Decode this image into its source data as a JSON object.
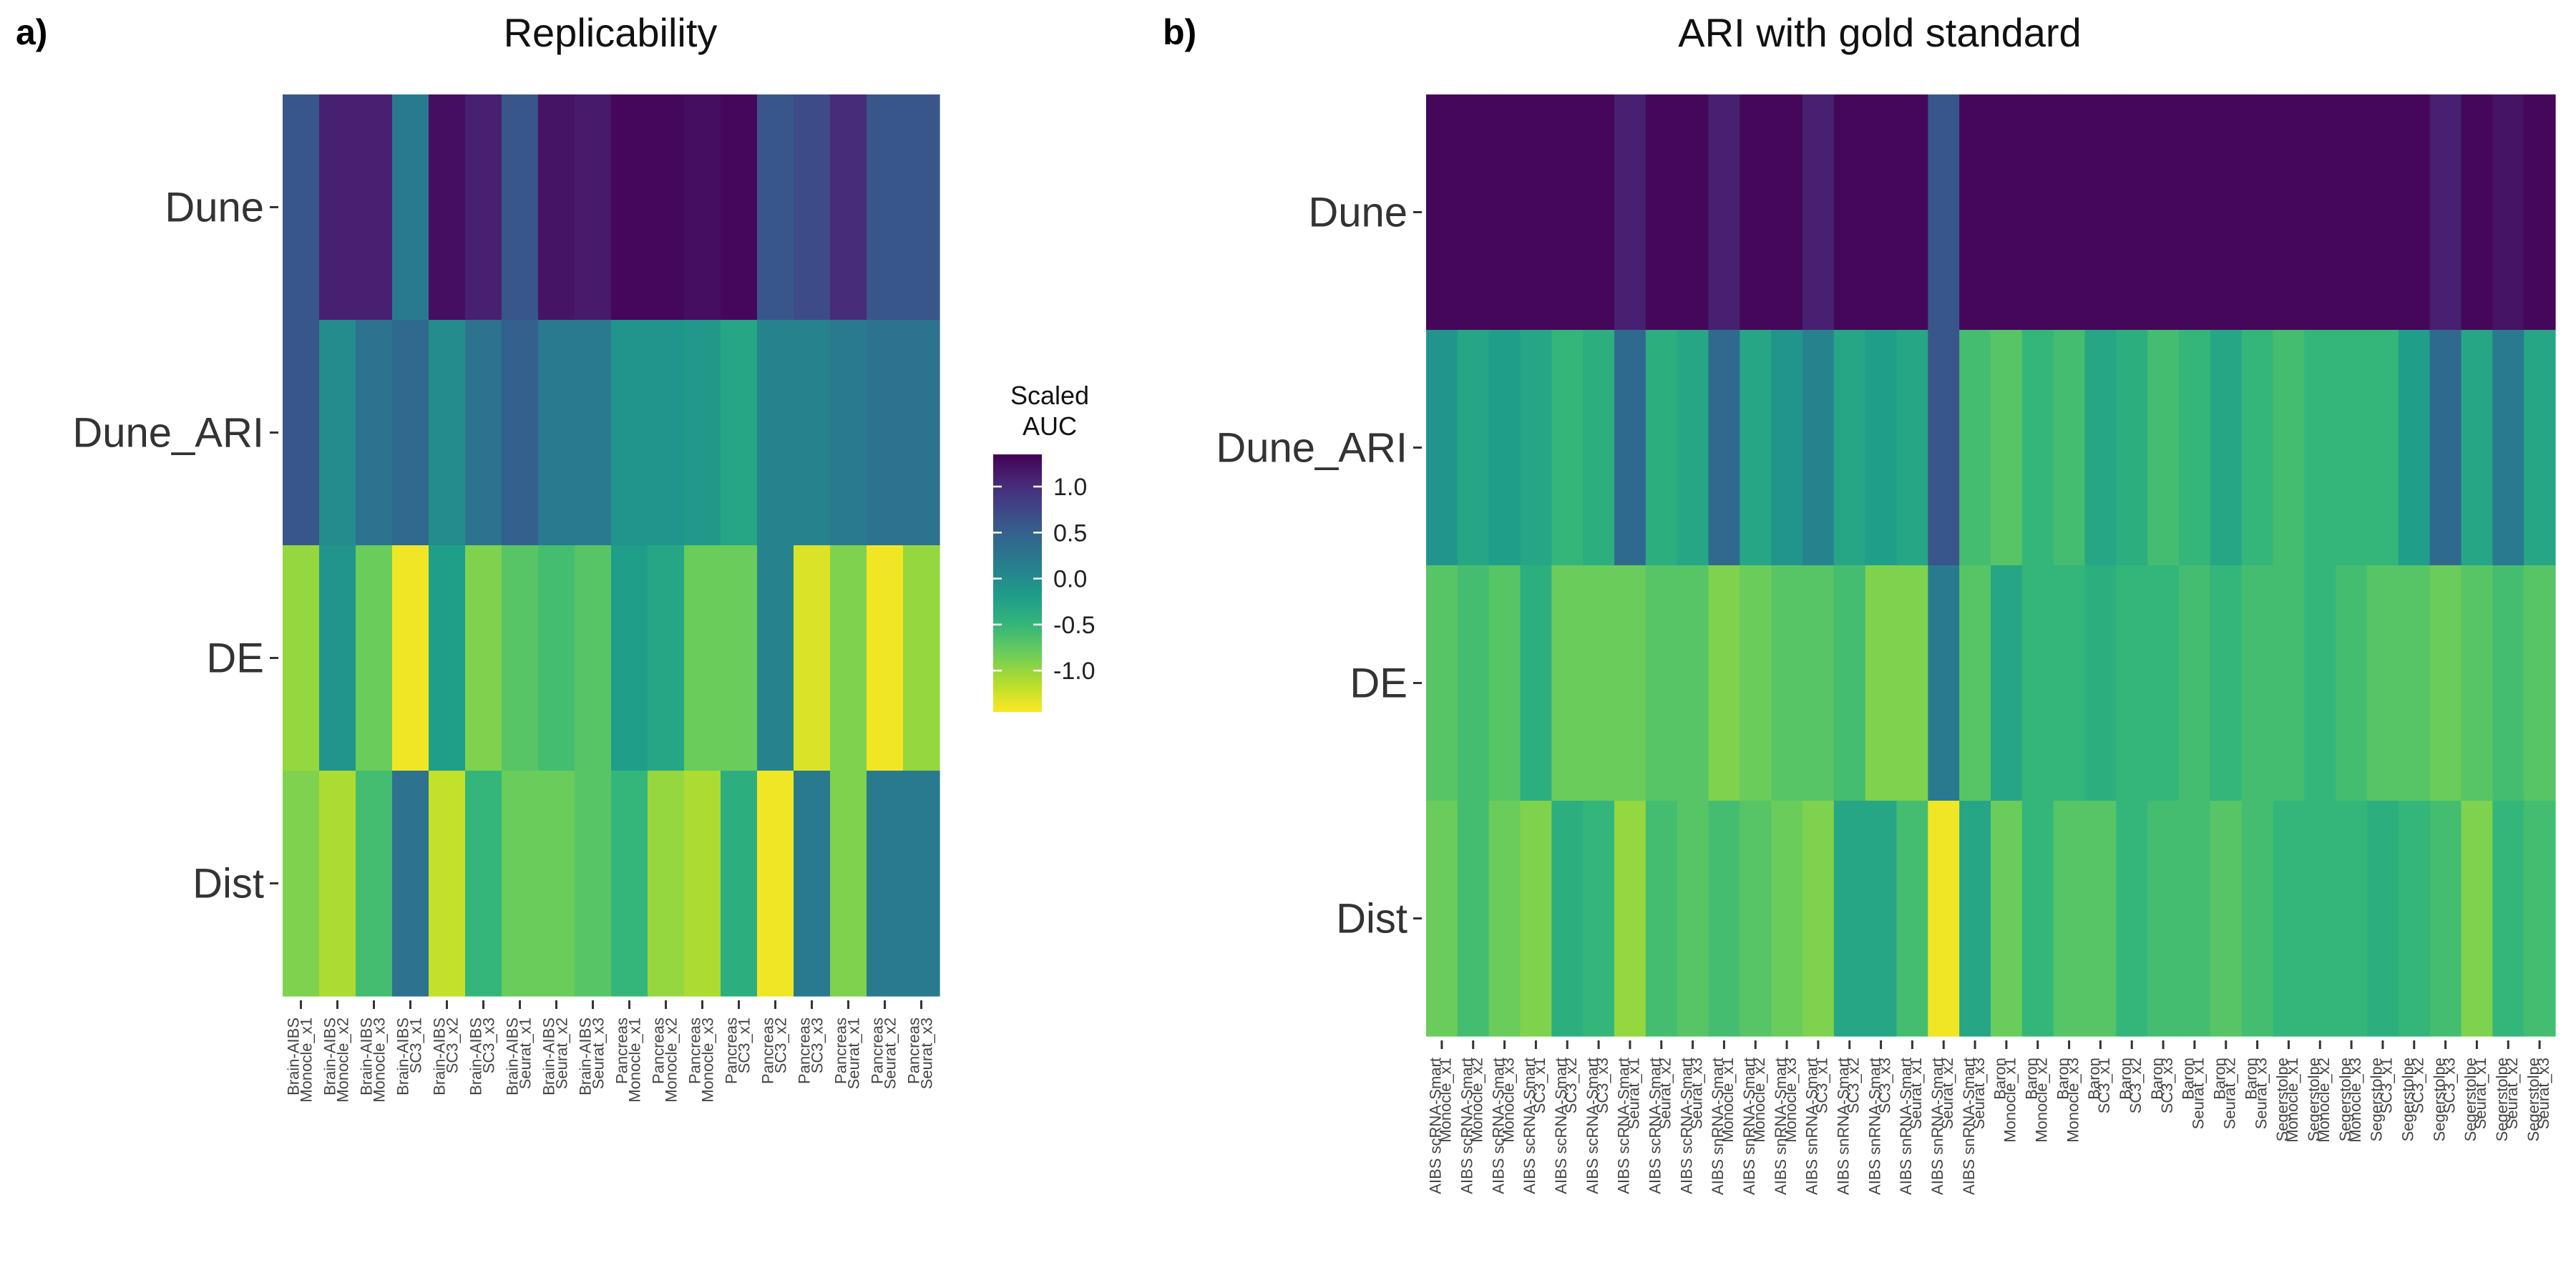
{
  "colors": {
    "colormap": "viridis (reversed: yellow = low, dark purple = high)"
  },
  "legend": {
    "title_line1": "Scaled",
    "title_line2": "AUC",
    "ticks": [
      1.0,
      0.5,
      0.0,
      -0.5,
      -1.0
    ],
    "tick_labels": [
      "1.0",
      "0.5",
      "0.0",
      "-0.5",
      "-1.0"
    ],
    "range": [
      -1.45,
      1.35
    ]
  },
  "chart_data": [
    {
      "type": "heatmap",
      "panel": "a)",
      "title": "Replicability",
      "rows": [
        "Dune",
        "Dune_ARI",
        "DE",
        "Dist"
      ],
      "columns": [
        "Brain-AIBS\nMonocle_x1",
        "Brain-AIBS\nMonocle_x2",
        "Brain-AIBS\nMonocle_x3",
        "Brain-AIBS\nSC3_x1",
        "Brain-AIBS\nSC3_x2",
        "Brain-AIBS\nSC3_x3",
        "Brain-AIBS\nSeurat_x1",
        "Brain-AIBS\nSeurat_x2",
        "Brain-AIBS\nSeurat_x3",
        "Pancreas\nMonocle_x1",
        "Pancreas\nMonocle_x2",
        "Pancreas\nMonocle_x3",
        "Pancreas\nSC3_x1",
        "Pancreas\nSC3_x2",
        "Pancreas\nSC3_x3",
        "Pancreas\nSeurat_x1",
        "Pancreas\nSeurat_x2",
        "Pancreas\nSeurat_x3"
      ],
      "values": [
        [
          0.6,
          1.1,
          1.1,
          0.2,
          1.25,
          1.1,
          0.6,
          1.2,
          1.15,
          1.3,
          1.3,
          1.25,
          1.3,
          0.6,
          0.7,
          1.0,
          0.6,
          0.6
        ],
        [
          0.6,
          0.0,
          0.3,
          0.4,
          0.0,
          0.3,
          0.5,
          0.2,
          0.2,
          -0.1,
          -0.1,
          -0.15,
          -0.3,
          0.1,
          0.1,
          0.2,
          0.3,
          0.3
        ],
        [
          -1.0,
          -0.1,
          -0.8,
          -1.4,
          -0.2,
          -0.9,
          -0.7,
          -0.6,
          -0.7,
          -0.2,
          -0.3,
          -0.8,
          -0.8,
          0.1,
          -1.3,
          -0.9,
          -1.4,
          -1.0
        ],
        [
          -0.9,
          -1.1,
          -0.6,
          0.3,
          -1.2,
          -0.5,
          -0.8,
          -0.8,
          -0.7,
          -0.5,
          -1.0,
          -1.1,
          -0.4,
          -1.4,
          0.2,
          -0.9,
          0.2,
          0.2
        ]
      ]
    },
    {
      "type": "heatmap",
      "panel": "b)",
      "title": "ARI with gold standard",
      "rows": [
        "Dune",
        "Dune_ARI",
        "DE",
        "Dist"
      ],
      "columns": [
        "AIBS scRNA-Smart\nMonocle_x1",
        "AIBS scRNA-Smart\nMonocle_x2",
        "AIBS scRNA-Smart\nMonocle_x3",
        "AIBS scRNA-Smart\nSC3_x1",
        "AIBS scRNA-Smart\nSC3_x2",
        "AIBS scRNA-Smart\nSC3_x3",
        "AIBS scRNA-Smart\nSeurat_x1",
        "AIBS scRNA-Smart\nSeurat_x2",
        "AIBS scRNA-Smart\nSeurat_x3",
        "AIBS snRNA-Smart\nMonocle_x1",
        "AIBS snRNA-Smart\nMonocle_x2",
        "AIBS snRNA-Smart\nMonocle_x3",
        "AIBS snRNA-Smart\nSC3_x1",
        "AIBS snRNA-Smart\nSC3_x2",
        "AIBS snRNA-Smart\nSC3_x3",
        "AIBS snRNA-Smart\nSeurat_x1",
        "AIBS snRNA-Smart\nSeurat_x2",
        "AIBS snRNA-Smart\nSeurat_x3",
        "Baron\nMonocle_x1",
        "Baron\nMonocle_x2",
        "Baron\nMonocle_x3",
        "Baron\nSC3_x1",
        "Baron\nSC3_x2",
        "Baron\nSC3_x3",
        "Baron\nSeurat_x1",
        "Baron\nSeurat_x2",
        "Baron\nSeurat_x3",
        "Segerstolpe\nMonocle_x1",
        "Segerstolpe\nMonocle_x2",
        "Segerstolpe\nMonocle_x3",
        "Segerstolpe\nSC3_x1",
        "Segerstolpe\nSC3_x2",
        "Segerstolpe\nSC3_x3",
        "Segerstolpe\nSeurat_x1",
        "Segerstolpe\nSeurat_x2",
        "Segerstolpe\nSeurat_x3"
      ],
      "values": [
        [
          1.3,
          1.3,
          1.3,
          1.3,
          1.3,
          1.3,
          1.1,
          1.3,
          1.3,
          1.1,
          1.3,
          1.3,
          1.1,
          1.3,
          1.3,
          1.3,
          0.6,
          1.3,
          1.3,
          1.3,
          1.3,
          1.3,
          1.3,
          1.3,
          1.3,
          1.3,
          1.3,
          1.3,
          1.3,
          1.3,
          1.3,
          1.3,
          1.1,
          1.3,
          1.2,
          1.3
        ],
        [
          -0.1,
          -0.3,
          -0.2,
          -0.3,
          -0.5,
          -0.4,
          0.4,
          -0.4,
          -0.3,
          0.4,
          -0.3,
          -0.1,
          0.1,
          -0.3,
          -0.2,
          -0.3,
          0.6,
          -0.6,
          -0.7,
          -0.5,
          -0.6,
          -0.3,
          -0.4,
          -0.6,
          -0.5,
          -0.3,
          -0.5,
          -0.6,
          -0.5,
          -0.5,
          -0.5,
          -0.2,
          0.4,
          -0.3,
          0.2,
          -0.3
        ],
        [
          -0.7,
          -0.6,
          -0.7,
          -0.4,
          -0.8,
          -0.8,
          -0.8,
          -0.7,
          -0.7,
          -0.9,
          -0.8,
          -0.7,
          -0.7,
          -0.6,
          -0.9,
          -0.9,
          0.2,
          -0.7,
          -0.3,
          -0.5,
          -0.5,
          -0.4,
          -0.5,
          -0.5,
          -0.6,
          -0.5,
          -0.6,
          -0.6,
          -0.5,
          -0.6,
          -0.7,
          -0.7,
          -0.8,
          -0.7,
          -0.6,
          -0.7
        ],
        [
          -0.8,
          -0.6,
          -0.8,
          -0.9,
          -0.4,
          -0.5,
          -1.0,
          -0.6,
          -0.7,
          -0.6,
          -0.7,
          -0.8,
          -0.9,
          -0.3,
          -0.3,
          -0.6,
          -1.4,
          -0.3,
          -0.8,
          -0.5,
          -0.7,
          -0.7,
          -0.5,
          -0.6,
          -0.6,
          -0.7,
          -0.6,
          -0.5,
          -0.5,
          -0.5,
          -0.4,
          -0.5,
          -0.6,
          -0.9,
          -0.5,
          -0.6
        ]
      ]
    }
  ]
}
